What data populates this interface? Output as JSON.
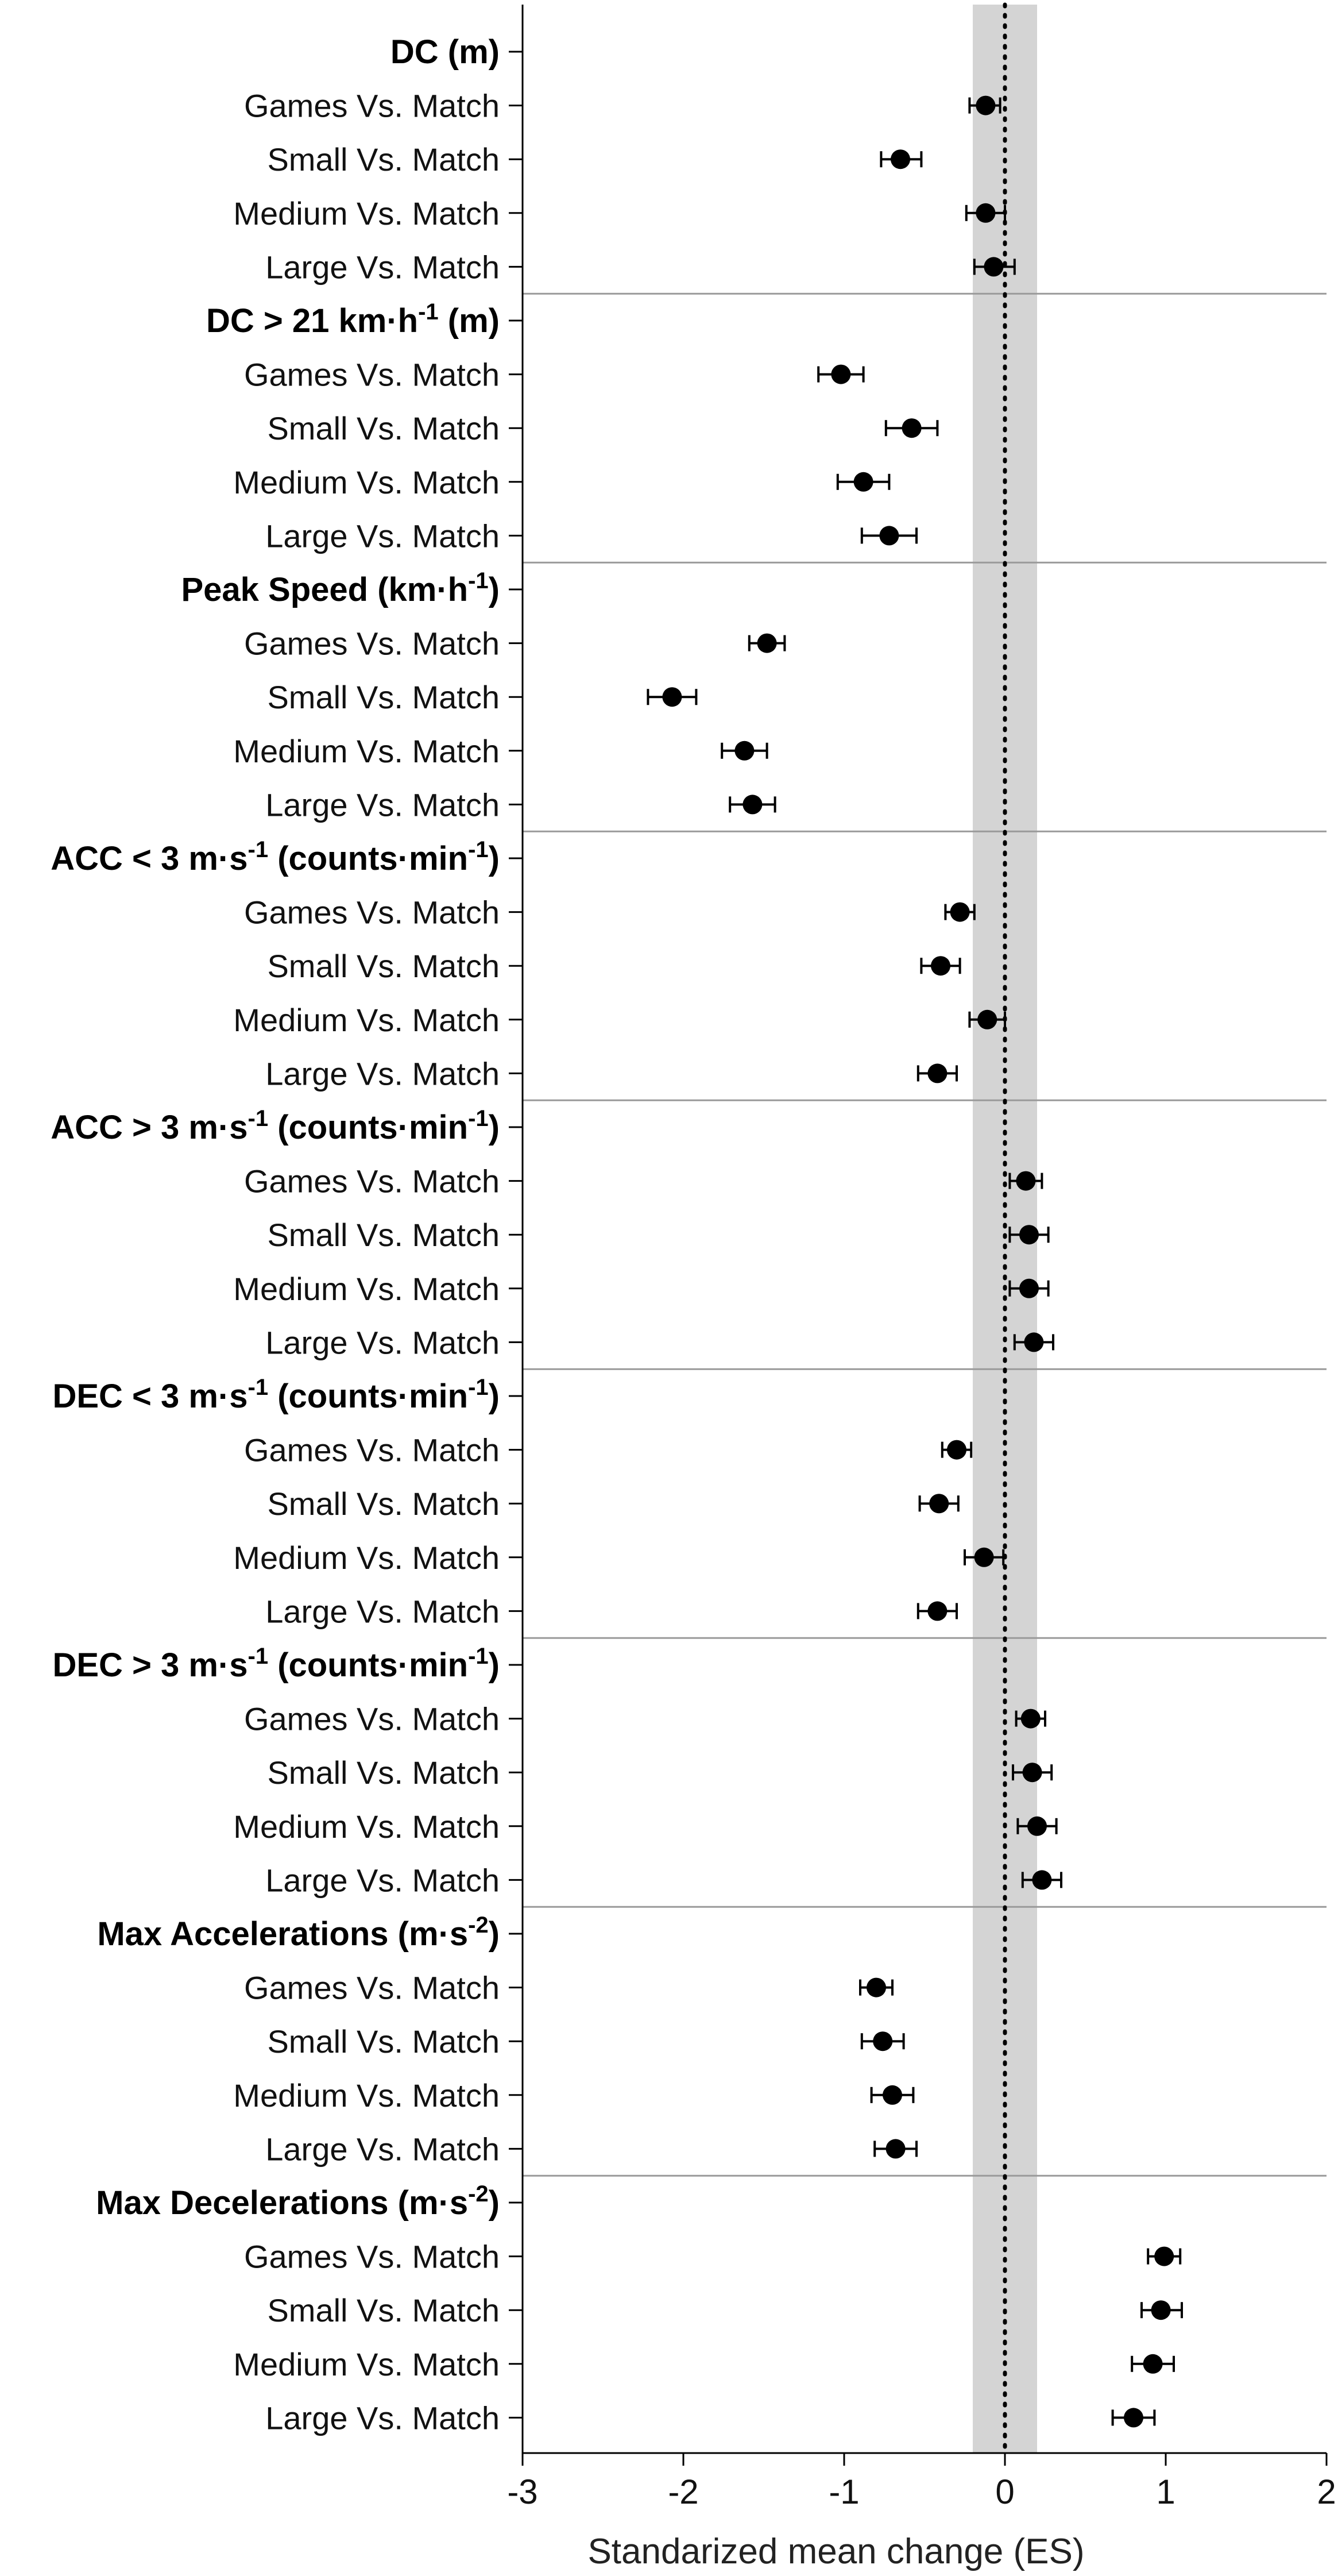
{
  "chart_data": {
    "type": "forest",
    "xlabel": "Standarized mean change (ES)",
    "xlim": [
      -3,
      2
    ],
    "xticks": [
      -3,
      -2,
      -1,
      0,
      1,
      2
    ],
    "xtick_labels": [
      "-3",
      "-2",
      "-1",
      "0",
      "1",
      "2"
    ],
    "reference_line": 0,
    "trivial_band": [
      -0.2,
      0.2
    ],
    "marker_color": "#000000",
    "band_color": "#d4d4d4",
    "groups": [
      {
        "label": "DC (m)",
        "rows": [
          {
            "label": "Games Vs. Match",
            "es": -0.12,
            "lo": -0.22,
            "hi": -0.03
          },
          {
            "label": "Small Vs. Match",
            "es": -0.65,
            "lo": -0.77,
            "hi": -0.52
          },
          {
            "label": "Medium Vs. Match",
            "es": -0.12,
            "lo": -0.24,
            "hi": 0.0
          },
          {
            "label": "Large Vs. Match",
            "es": -0.07,
            "lo": -0.19,
            "hi": 0.06
          }
        ]
      },
      {
        "label": "DC > 21 km·h-1 (m)",
        "rows": [
          {
            "label": "Games Vs. Match",
            "es": -1.02,
            "lo": -1.16,
            "hi": -0.88
          },
          {
            "label": "Small Vs. Match",
            "es": -0.58,
            "lo": -0.74,
            "hi": -0.42
          },
          {
            "label": "Medium Vs. Match",
            "es": -0.88,
            "lo": -1.04,
            "hi": -0.72
          },
          {
            "label": "Large Vs. Match",
            "es": -0.72,
            "lo": -0.89,
            "hi": -0.55
          }
        ]
      },
      {
        "label": "Peak Speed (km·h-1)",
        "rows": [
          {
            "label": "Games Vs. Match",
            "es": -1.48,
            "lo": -1.59,
            "hi": -1.37
          },
          {
            "label": "Small Vs. Match",
            "es": -2.07,
            "lo": -2.22,
            "hi": -1.92
          },
          {
            "label": "Medium Vs. Match",
            "es": -1.62,
            "lo": -1.76,
            "hi": -1.48
          },
          {
            "label": "Large Vs. Match",
            "es": -1.57,
            "lo": -1.71,
            "hi": -1.43
          }
        ]
      },
      {
        "label": "ACC < 3 m·s-1 (counts·min-1)",
        "rows": [
          {
            "label": "Games Vs. Match",
            "es": -0.28,
            "lo": -0.37,
            "hi": -0.19
          },
          {
            "label": "Small Vs. Match",
            "es": -0.4,
            "lo": -0.52,
            "hi": -0.28
          },
          {
            "label": "Medium Vs. Match",
            "es": -0.11,
            "lo": -0.22,
            "hi": 0.0
          },
          {
            "label": "Large Vs. Match",
            "es": -0.42,
            "lo": -0.54,
            "hi": -0.3
          }
        ]
      },
      {
        "label": "ACC > 3 m·s-1 (counts·min-1)",
        "rows": [
          {
            "label": "Games Vs. Match",
            "es": 0.13,
            "lo": 0.03,
            "hi": 0.23
          },
          {
            "label": "Small Vs. Match",
            "es": 0.15,
            "lo": 0.03,
            "hi": 0.27
          },
          {
            "label": "Medium Vs. Match",
            "es": 0.15,
            "lo": 0.03,
            "hi": 0.27
          },
          {
            "label": "Large Vs. Match",
            "es": 0.18,
            "lo": 0.06,
            "hi": 0.3
          }
        ]
      },
      {
        "label": "DEC < 3 m·s-1 (counts·min-1)",
        "rows": [
          {
            "label": "Games Vs. Match",
            "es": -0.3,
            "lo": -0.39,
            "hi": -0.21
          },
          {
            "label": "Small Vs. Match",
            "es": -0.41,
            "lo": -0.53,
            "hi": -0.29
          },
          {
            "label": "Medium Vs. Match",
            "es": -0.13,
            "lo": -0.25,
            "hi": -0.01
          },
          {
            "label": "Large Vs. Match",
            "es": -0.42,
            "lo": -0.54,
            "hi": -0.3
          }
        ]
      },
      {
        "label": "DEC > 3 m·s-1 (counts·min-1)",
        "rows": [
          {
            "label": "Games Vs. Match",
            "es": 0.16,
            "lo": 0.07,
            "hi": 0.25
          },
          {
            "label": "Small Vs. Match",
            "es": 0.17,
            "lo": 0.05,
            "hi": 0.29
          },
          {
            "label": "Medium Vs. Match",
            "es": 0.2,
            "lo": 0.08,
            "hi": 0.32
          },
          {
            "label": "Large Vs. Match",
            "es": 0.23,
            "lo": 0.11,
            "hi": 0.35
          }
        ]
      },
      {
        "label": "Max Accelerations (m·s-2)",
        "rows": [
          {
            "label": "Games Vs. Match",
            "es": -0.8,
            "lo": -0.9,
            "hi": -0.7
          },
          {
            "label": "Small Vs. Match",
            "es": -0.76,
            "lo": -0.89,
            "hi": -0.63
          },
          {
            "label": "Medium Vs. Match",
            "es": -0.7,
            "lo": -0.83,
            "hi": -0.57
          },
          {
            "label": "Large Vs. Match",
            "es": -0.68,
            "lo": -0.81,
            "hi": -0.55
          }
        ]
      },
      {
        "label": "Max Decelerations (m·s-2)",
        "rows": [
          {
            "label": "Games Vs. Match",
            "es": 0.99,
            "lo": 0.89,
            "hi": 1.09
          },
          {
            "label": "Small Vs. Match",
            "es": 0.97,
            "lo": 0.85,
            "hi": 1.1
          },
          {
            "label": "Medium Vs. Match",
            "es": 0.92,
            "lo": 0.79,
            "hi": 1.05
          },
          {
            "label": "Large Vs. Match",
            "es": 0.8,
            "lo": 0.67,
            "hi": 0.93
          }
        ]
      }
    ]
  }
}
